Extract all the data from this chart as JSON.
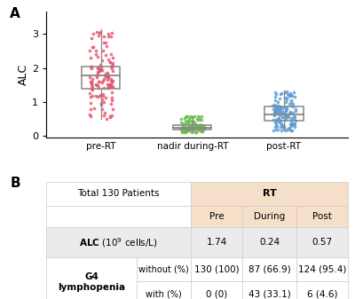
{
  "panel_A_label": "A",
  "panel_B_label": "B",
  "groups": [
    "pre-RT",
    "nadir during-RT",
    "post-RT"
  ],
  "colors": [
    "#E8536A",
    "#6BBF4E",
    "#5B9BD5"
  ],
  "pre_RT": {
    "median": 1.78,
    "q1": 1.38,
    "q3": 2.05,
    "whisker_low": 0.5,
    "whisker_high": 3.15,
    "n": 130,
    "mean": 1.74
  },
  "nadir_RT": {
    "median": 0.24,
    "q1": 0.18,
    "q3": 0.31,
    "whisker_low": 0.1,
    "whisker_high": 0.58,
    "n": 130,
    "mean": 0.24
  },
  "post_RT": {
    "median": 0.62,
    "q1": 0.44,
    "q3": 0.85,
    "whisker_low": 0.15,
    "whisker_high": 1.32,
    "n": 130,
    "mean": 0.57
  },
  "ylabel": "ALC",
  "ylim": [
    -0.05,
    3.65
  ],
  "yticks": [
    0,
    1,
    2,
    3
  ],
  "table_header_bg": "#F5DFC8",
  "table_row_bg1": "#EBEBEB",
  "table_row_bg2": "#FFFFFF",
  "table_border": "#CCCCCC",
  "col_header": [
    "Pre",
    "During",
    "Post"
  ],
  "row1_values": [
    "1.74",
    "0.24",
    "0.57"
  ],
  "row2_label_bold": "G4\nlymphopenia",
  "row2_sub1": "without (%)",
  "row2_sub2": "with (%)",
  "row2_without": [
    "130 (100)",
    "87 (66.9)",
    "124 (95.4)"
  ],
  "row2_with": [
    "0 (0)",
    "43 (33.1)",
    "6 (4.6)"
  ],
  "top_left_label": "Total 130 Patients",
  "rt_header": "RT",
  "seed": 42
}
